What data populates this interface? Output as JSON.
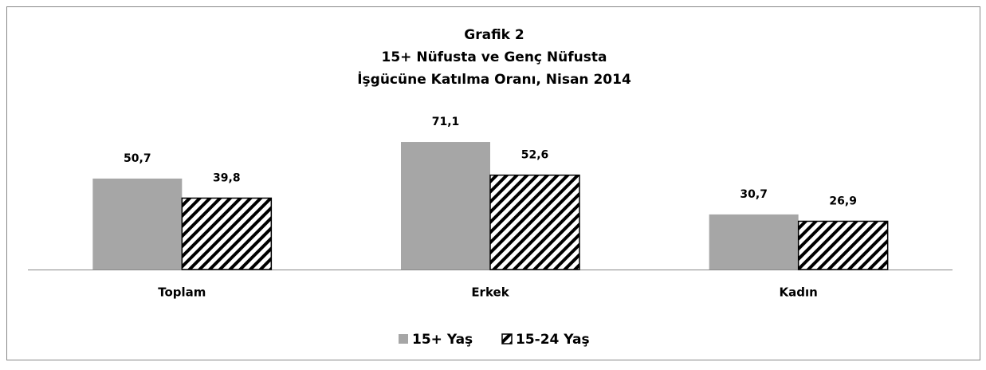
{
  "chart_data": {
    "type": "bar",
    "title": "Grafik 2",
    "subtitle": [
      "15+ Nüfusta ve Genç Nüfusta",
      "İşgücüne Katılma Oranı, Nisan 2014"
    ],
    "categories": [
      "Toplam",
      "Erkek",
      "Kadın"
    ],
    "series": [
      {
        "name": "15+ Yaş",
        "color": "#a6a6a6",
        "values": [
          50.7,
          71.1,
          30.7
        ],
        "value_labels": [
          "50,7",
          "71,1",
          "30,7"
        ]
      },
      {
        "name": "15-24 Yaş",
        "color": "#000000",
        "pattern": "diagonal-hatch",
        "values": [
          39.8,
          52.6,
          26.9
        ],
        "value_labels": [
          "39,8",
          "52,6",
          "26,9"
        ]
      }
    ],
    "ylim": [
      0,
      80
    ],
    "legend": "bottom"
  }
}
